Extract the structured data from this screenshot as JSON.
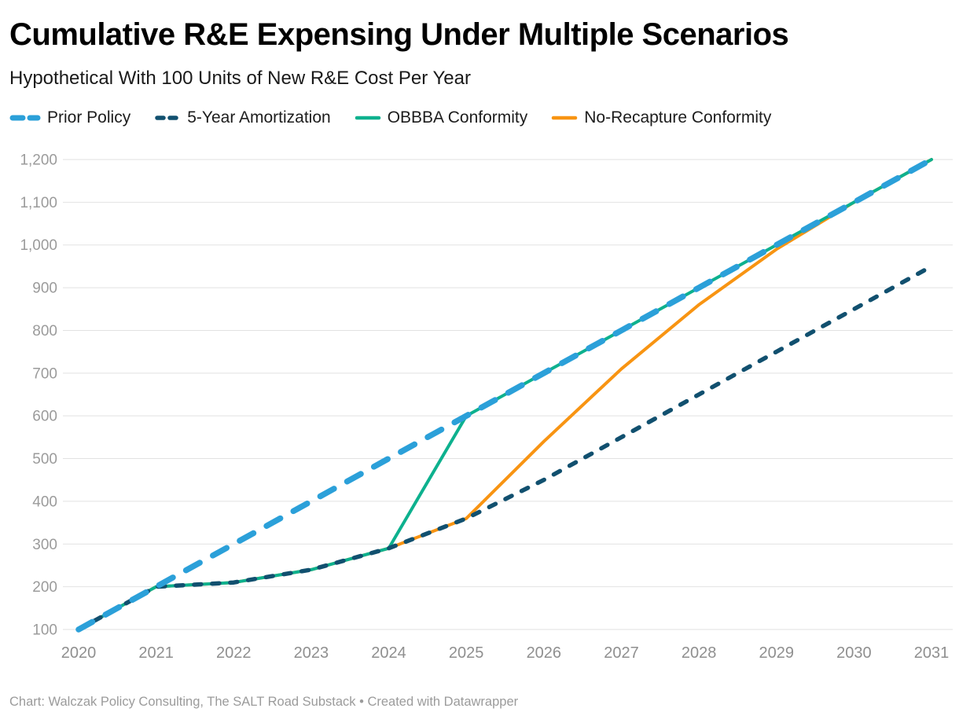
{
  "header": {
    "title": "Cumulative R&E Expensing Under Multiple Scenarios",
    "subtitle": "Hypothetical With 100 Units of New R&E Cost Per Year"
  },
  "footer": {
    "text": "Chart: Walczak Policy Consulting, The SALT Road Substack • Created with Datawrapper"
  },
  "colors": {
    "prior_policy": "#2ba0d9",
    "five_year_amortization": "#11506f",
    "obbba_conformity": "#0db18e",
    "no_recapture_conformity": "#f89412",
    "gridline": "#e2e2e2",
    "axis_text": "#9b9b9b"
  },
  "chart_data": {
    "type": "line",
    "title": "Cumulative R&E Expensing Under Multiple Scenarios",
    "subtitle": "Hypothetical With 100 Units of New R&E Cost Per Year",
    "x": [
      2020,
      2021,
      2022,
      2023,
      2024,
      2025,
      2026,
      2027,
      2028,
      2029,
      2030,
      2031
    ],
    "series": [
      {
        "name": "Prior Policy",
        "color": "#2ba0d9",
        "style": "dashed-wide",
        "values": [
          100,
          200,
          300,
          400,
          500,
          600,
          700,
          800,
          900,
          1000,
          1100,
          1200
        ]
      },
      {
        "name": "5-Year Amortization",
        "color": "#11506f",
        "style": "dashed-small",
        "values": [
          100,
          200,
          210,
          240,
          290,
          360,
          450,
          550,
          650,
          750,
          850,
          950
        ]
      },
      {
        "name": "OBBBA Conformity",
        "color": "#0db18e",
        "style": "solid",
        "values": [
          100,
          200,
          210,
          240,
          290,
          600,
          700,
          800,
          900,
          1000,
          1100,
          1200
        ]
      },
      {
        "name": "No-Recapture Conformity",
        "color": "#f89412",
        "style": "solid",
        "values": [
          100,
          200,
          210,
          240,
          290,
          360,
          540,
          710,
          860,
          990,
          1100,
          1200
        ]
      }
    ],
    "ylim": [
      100,
      1200
    ],
    "yticks": [
      100,
      200,
      300,
      400,
      500,
      600,
      700,
      800,
      900,
      1000,
      1100,
      1200
    ],
    "ytick_labels": [
      "100",
      "200",
      "300",
      "400",
      "500",
      "600",
      "700",
      "800",
      "900",
      "1,000",
      "1,100",
      "1,200"
    ],
    "xlabel": "",
    "ylabel": "",
    "grid": "horizontal",
    "legend_position": "top"
  }
}
